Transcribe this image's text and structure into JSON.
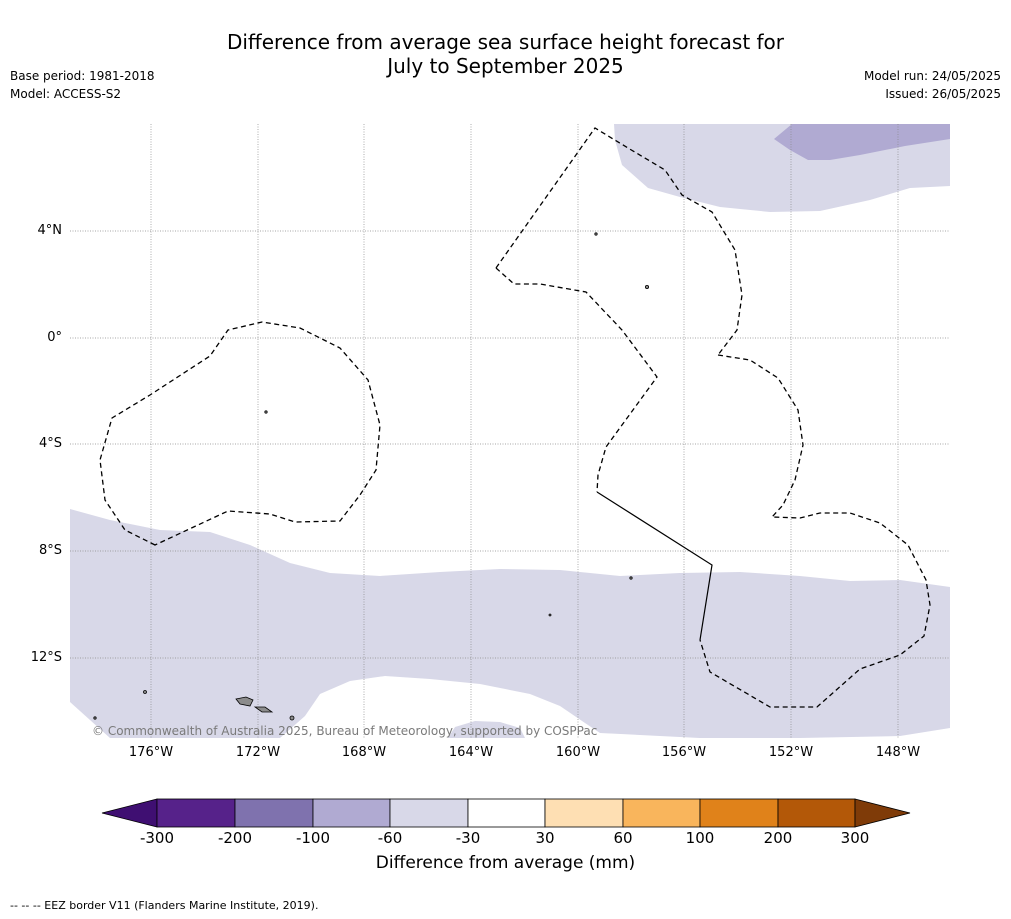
{
  "header": {
    "title_line1": "Difference from average sea surface height forecast for",
    "title_line2": "July to September 2025",
    "base_period": "Base period: 1981-2018",
    "model": "Model: ACCESS-S2",
    "model_run": "Model run: 24/05/2025",
    "issued": "Issued: 26/05/2025"
  },
  "map": {
    "lat_labels": [
      "4°N",
      "0°",
      "4°S",
      "8°S",
      "12°S"
    ],
    "lon_labels": [
      "176°W",
      "172°W",
      "168°W",
      "164°W",
      "160°W",
      "156°W",
      "152°W",
      "148°W"
    ],
    "copyright": "© Commonwealth of Australia 2025, Bureau of Meteorology, supported by COSPPac",
    "colors": {
      "band_minus_60_to_minus_30": "#d8d8e8",
      "band_minus_100_to_minus_60": "#b0aad2",
      "land": "#8c8c8c",
      "eez_border": "#000000"
    }
  },
  "colorbar": {
    "tick_labels": [
      "-300",
      "-200",
      "-100",
      "-60",
      "-30",
      "30",
      "60",
      "100",
      "200",
      "300"
    ],
    "colors": [
      "#3f0f72",
      "#56228a",
      "#7f72ae",
      "#b0aad2",
      "#d8d8e8",
      "#ffffff",
      "#fedfb3",
      "#f9b55c",
      "#e0821a",
      "#b35808",
      "#7f3b08"
    ],
    "title": "Difference from average (mm)"
  },
  "footer": {
    "eez_note": "--  --  -- EEZ border V11 (Flanders Marine Institute, 2019)."
  }
}
